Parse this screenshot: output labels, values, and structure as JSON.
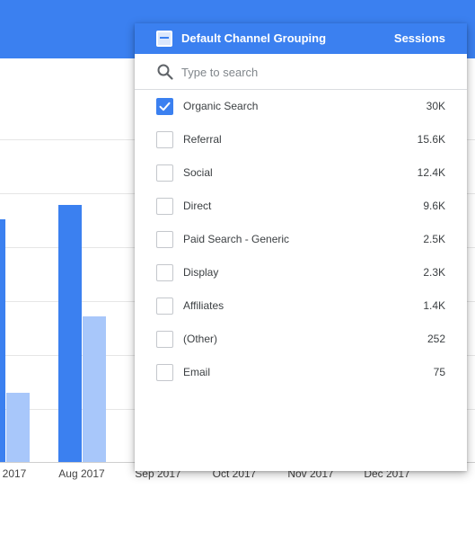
{
  "header": {
    "dimension_label": "Default Channel Grouping",
    "metric_label": "Sessions"
  },
  "search": {
    "placeholder": "Type to search",
    "value": ""
  },
  "items": [
    {
      "label": "Organic Search",
      "value": "30K",
      "checked": true
    },
    {
      "label": "Referral",
      "value": "15.6K",
      "checked": false
    },
    {
      "label": "Social",
      "value": "12.4K",
      "checked": false
    },
    {
      "label": "Direct",
      "value": "9.6K",
      "checked": false
    },
    {
      "label": "Paid Search - Generic",
      "value": "2.5K",
      "checked": false
    },
    {
      "label": "Display",
      "value": "2.3K",
      "checked": false
    },
    {
      "label": "Affiliates",
      "value": "1.4K",
      "checked": false
    },
    {
      "label": "(Other)",
      "value": "252",
      "checked": false
    },
    {
      "label": "Email",
      "value": "75",
      "checked": false
    }
  ],
  "chart": {
    "x_labels": [
      "2017",
      "Aug 2017",
      "Sep 2017",
      "Oct 2017",
      "Nov 2017",
      "Dec 2017"
    ]
  },
  "colors": {
    "accent": "#3b80f0",
    "series_light": "#a8c7fa"
  }
}
